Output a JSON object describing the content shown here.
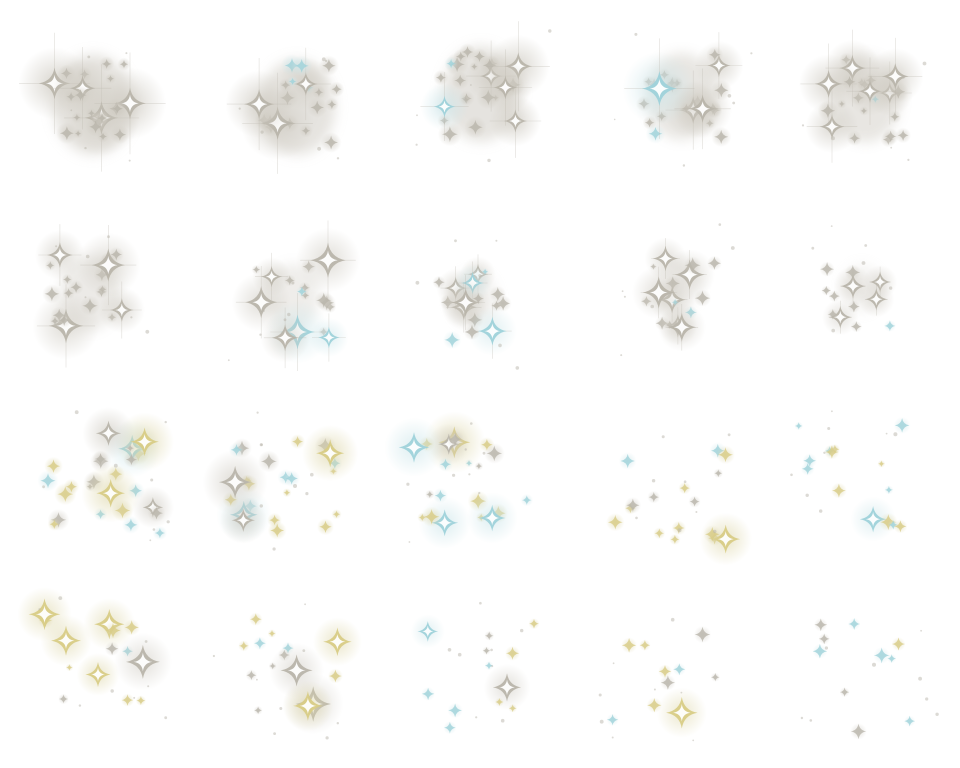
{
  "sprite_sheet": {
    "title": "",
    "grid": {
      "columns": 5,
      "rows": 4
    },
    "palette": {
      "gray": "#b9b5ab",
      "cyan": "#9fd2da",
      "gold": "#d8cc86",
      "white_core": "#ffffff",
      "glow_gray": "#cfcbc2",
      "glow_gold": "#ddd6a8",
      "glow_cyan": "#cde6ea"
    },
    "frames": [
      {
        "index": 1,
        "style": "dense-haze",
        "sparkle_count": 24,
        "glow": 1.0,
        "streak": 1.0
      },
      {
        "index": 2,
        "style": "dense-haze",
        "sparkle_count": 20,
        "glow": 0.95,
        "streak": 0.95
      },
      {
        "index": 3,
        "style": "dense-haze",
        "sparkle_count": 24,
        "glow": 0.95,
        "streak": 1.0
      },
      {
        "index": 4,
        "style": "dense-haze",
        "sparkle_count": 22,
        "glow": 0.85,
        "streak": 0.9
      },
      {
        "index": 5,
        "style": "dense-haze",
        "sparkle_count": 22,
        "glow": 0.85,
        "streak": 0.9
      },
      {
        "index": 6,
        "style": "haze",
        "sparkle_count": 20,
        "glow": 0.7,
        "streak": 0.75
      },
      {
        "index": 7,
        "style": "haze",
        "sparkle_count": 16,
        "glow": 0.6,
        "streak": 0.7
      },
      {
        "index": 8,
        "style": "haze",
        "sparkle_count": 16,
        "glow": 0.5,
        "streak": 0.6
      },
      {
        "index": 9,
        "style": "haze",
        "sparkle_count": 16,
        "glow": 0.45,
        "streak": 0.5
      },
      {
        "index": 10,
        "style": "haze",
        "sparkle_count": 12,
        "glow": 0.4,
        "streak": 0.45
      },
      {
        "index": 11,
        "style": "colored",
        "sparkle_count": 26,
        "glow": 0.8,
        "streak": 0.5
      },
      {
        "index": 12,
        "style": "colored",
        "sparkle_count": 22,
        "glow": 0.75,
        "streak": 0.45
      },
      {
        "index": 13,
        "style": "colored",
        "sparkle_count": 20,
        "glow": 0.7,
        "streak": 0.4
      },
      {
        "index": 14,
        "style": "colored",
        "sparkle_count": 16,
        "glow": 0.6,
        "streak": 0.35
      },
      {
        "index": 15,
        "style": "colored",
        "sparkle_count": 14,
        "glow": 0.5,
        "streak": 0.3
      },
      {
        "index": 16,
        "style": "colored",
        "sparkle_count": 14,
        "glow": 0.5,
        "streak": 0.35
      },
      {
        "index": 17,
        "style": "colored",
        "sparkle_count": 14,
        "glow": 0.5,
        "streak": 0.35
      },
      {
        "index": 18,
        "style": "colored",
        "sparkle_count": 12,
        "glow": 0.45,
        "streak": 0.35
      },
      {
        "index": 19,
        "style": "colored",
        "sparkle_count": 10,
        "glow": 0.4,
        "streak": 0.3
      },
      {
        "index": 20,
        "style": "colored",
        "sparkle_count": 10,
        "glow": 0.35,
        "streak": 0.25
      }
    ]
  }
}
